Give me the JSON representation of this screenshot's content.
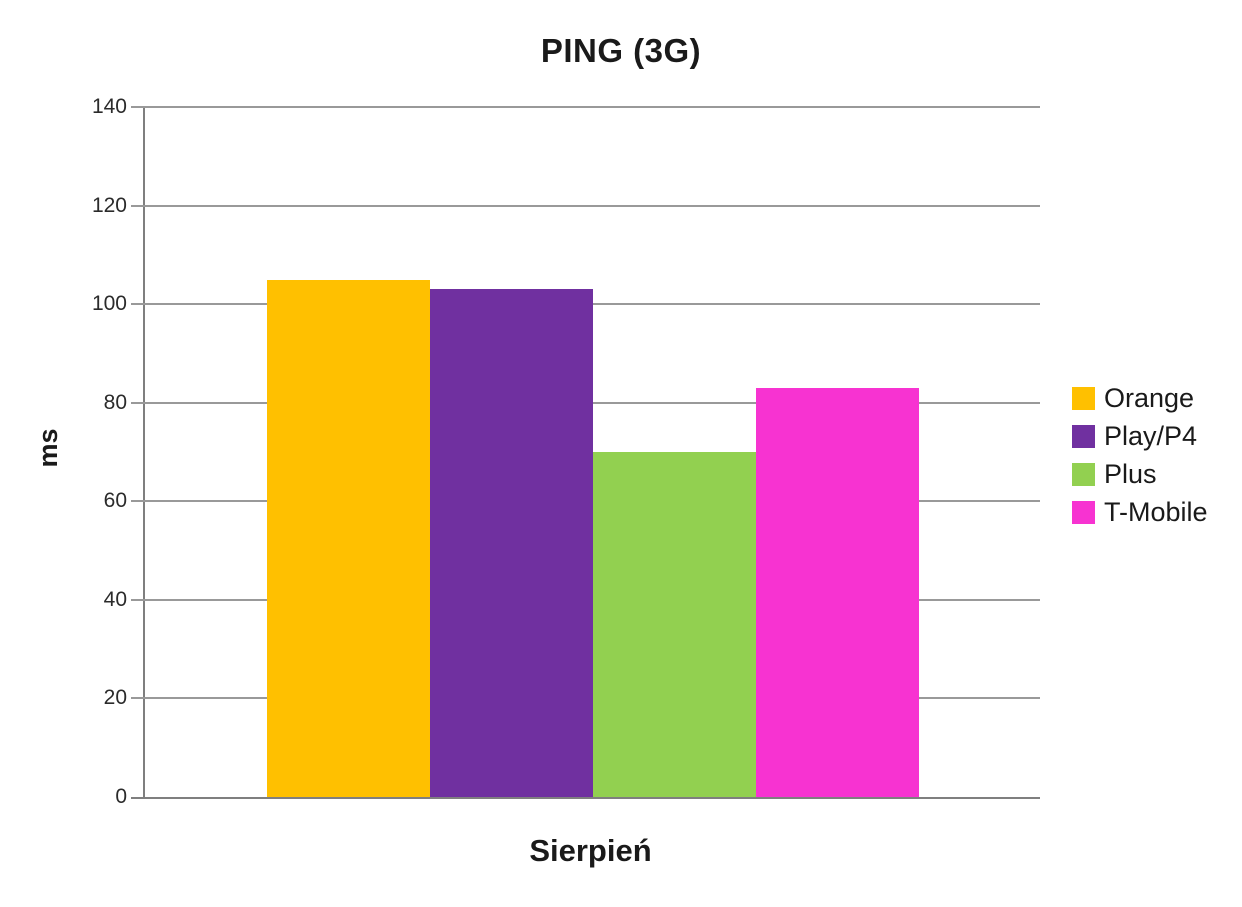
{
  "chart_data": {
    "type": "bar",
    "title": "PING (3G)",
    "xlabel": "Sierpień",
    "ylabel": "ms",
    "categories": [
      "Sierpień"
    ],
    "series": [
      {
        "name": "Orange",
        "values": [
          105
        ],
        "color": "#FFC000"
      },
      {
        "name": "Play/P4",
        "values": [
          103
        ],
        "color": "#7030A0"
      },
      {
        "name": "Plus",
        "values": [
          70
        ],
        "color": "#92D050"
      },
      {
        "name": "T-Mobile",
        "values": [
          83
        ],
        "color": "#F733D1"
      }
    ],
    "ylim": [
      0,
      140
    ],
    "yticks": [
      0,
      20,
      40,
      60,
      80,
      100,
      120,
      140
    ],
    "grid": true,
    "legend_position": "right",
    "grid_color": "#999999",
    "axis_color": "#7f7f7f"
  }
}
